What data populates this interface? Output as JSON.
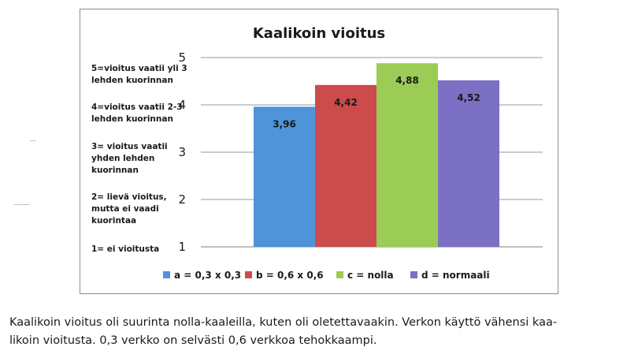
{
  "chart_data": {
    "type": "bar",
    "title": "Kaalikoin vioitus",
    "categories": [
      "a = 0,3 x 0,3",
      "b = 0,6 x 0,6",
      "c = nolla",
      "d = normaali"
    ],
    "series": [
      {
        "name": "a = 0,3 x 0,3",
        "value": 3.96,
        "label": "3,96",
        "color": "#4f93d8"
      },
      {
        "name": "b = 0,6 x 0,6",
        "value": 4.42,
        "label": "4,42",
        "color": "#cc4b4b"
      },
      {
        "name": "c = nolla",
        "value": 4.88,
        "label": "4,88",
        "color": "#9bcc55"
      },
      {
        "name": "d = normaali",
        "value": 4.52,
        "label": "4,52",
        "color": "#7b70c4"
      }
    ],
    "yticks": [
      "1",
      "2",
      "3",
      "4",
      "5"
    ],
    "ylim": [
      1,
      5
    ],
    "grid": true,
    "legend_position": "bottom"
  },
  "scale_notes": [
    {
      "line1": "5=vioitus vaatii yli 3",
      "line2": "lehden kuorinnan",
      "line3": ""
    },
    {
      "line1": "4=vioitus vaatii 2-3",
      "line2": "lehden kuorinnan",
      "line3": ""
    },
    {
      "line1": "3= vioitus vaatii",
      "line2": "yhden lehden",
      "line3": "kuorinnan"
    },
    {
      "line1": "2= lievä vioitus,",
      "line2": "mutta ei vaadi",
      "line3": "kuorintaa"
    },
    {
      "line1": "1= ei vioitusta",
      "line2": "",
      "line3": ""
    }
  ],
  "caption": {
    "line1": "Kaalikoin vioitus oli suurinta nolla-kaaleilla, kuten oli oletettavaakin. Verkon käyttö vähensi kaa-",
    "line2": "likoin vioitusta. 0,3 verkko on selvästi 0,6 verkkoa tehokkaampi."
  }
}
